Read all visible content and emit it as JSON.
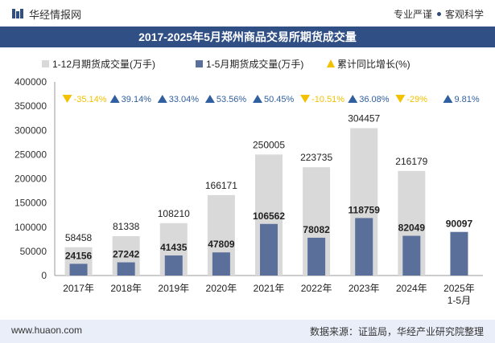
{
  "header": {
    "brand": "华经情报网",
    "tag1": "专业严谨",
    "tag2": "客观科学"
  },
  "title": "2017-2025年5月郑州商品交易所期货成交量",
  "footer": {
    "url": "www.huaon.com",
    "source": "数据来源：证监局，华经产业研究院整理"
  },
  "colors": {
    "full_year": "#d9d9d9",
    "jan_may": "#5b6f9b",
    "growth_marker": "#f2c200",
    "growth_up": "#2f5f9e",
    "growth_down": "#f2c200",
    "title_bg": "#2f4f85"
  },
  "chart_data": {
    "type": "bar",
    "categories": [
      "2017年",
      "2018年",
      "2019年",
      "2020年",
      "2021年",
      "2022年",
      "2023年",
      "2024年",
      "2025年\n1-5月"
    ],
    "series": [
      {
        "name": "1-12月期货成交量(万手)",
        "values": [
          58458,
          81338,
          108210,
          166171,
          250005,
          223735,
          304457,
          216179,
          null
        ]
      },
      {
        "name": "1-5月期货成交量(万手)",
        "values": [
          24156,
          27242,
          41435,
          47809,
          106562,
          78082,
          118759,
          82049,
          90097
        ]
      },
      {
        "name": "累计同比增长(%)",
        "values": [
          -35.14,
          39.14,
          33.04,
          53.56,
          50.45,
          -10.51,
          36.08,
          -29,
          9.81
        ],
        "labels": [
          "-35.14%",
          "39.14%",
          "33.04%",
          "53.56%",
          "50.45%",
          "-10.51%",
          "36.08%",
          "-29%",
          "9.81%"
        ]
      }
    ],
    "ylim": [
      0,
      400000
    ],
    "yticks": [
      0,
      50000,
      100000,
      150000,
      200000,
      250000,
      300000,
      350000,
      400000
    ],
    "legend_position": "top",
    "grid": false
  }
}
